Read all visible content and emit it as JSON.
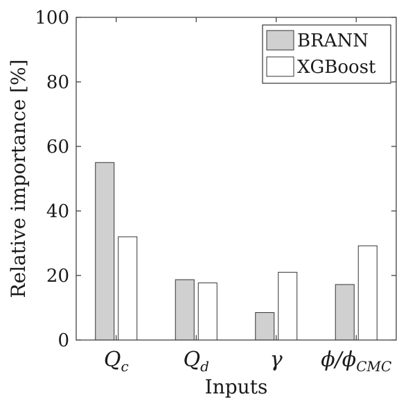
{
  "chart_data": {
    "type": "bar",
    "categories": [
      {
        "main": "Q",
        "sub": "c"
      },
      {
        "main": "Q",
        "sub": "d"
      },
      {
        "main": "γ",
        "sub": ""
      },
      {
        "main": "ϕ/ϕ",
        "sub": "CMC"
      }
    ],
    "series": [
      {
        "name": "BRANN",
        "color": "#d0d0d0",
        "values": [
          55,
          18.7,
          8.5,
          17.2
        ]
      },
      {
        "name": "XGBoost",
        "color": "#ffffff",
        "values": [
          32,
          17.7,
          21,
          29.2
        ]
      }
    ],
    "xlabel": "Inputs",
    "ylabel": "Relative importance [%]",
    "ylim": [
      0,
      100
    ],
    "yticks": [
      "0",
      "20",
      "40",
      "60",
      "80",
      "100"
    ],
    "legend_position": "top-right",
    "grid": false
  }
}
